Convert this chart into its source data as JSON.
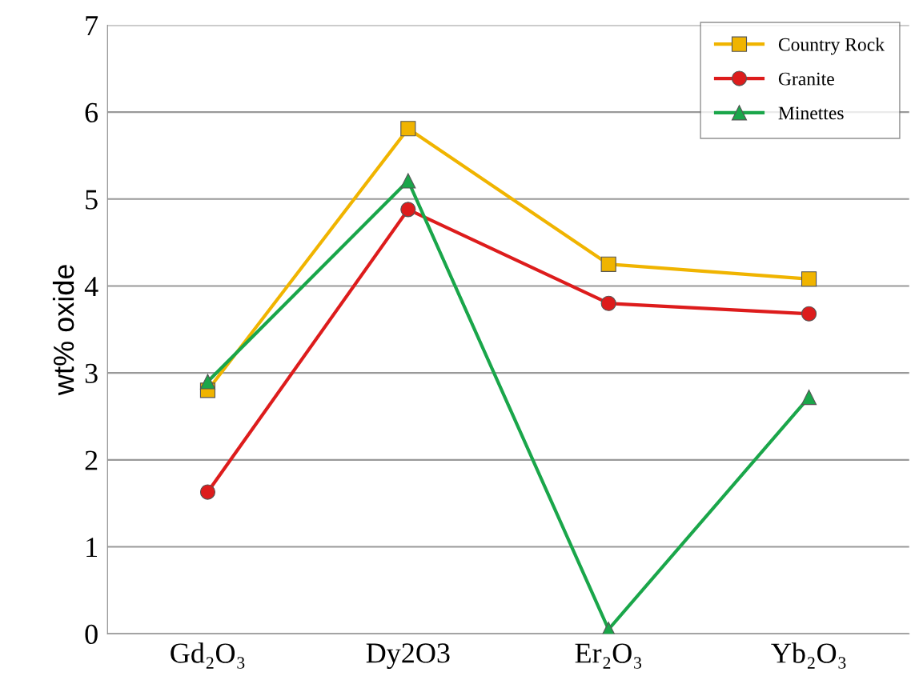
{
  "chart_data": {
    "type": "line",
    "ylabel": "wt% oxide",
    "categories": [
      "Gd₂O₃",
      "Dy2O3",
      "Er₂O₃",
      "Yb₂O₃"
    ],
    "series": [
      {
        "name": "Country Rock",
        "color": "#f0b400",
        "marker": "square",
        "values": [
          2.8,
          5.81,
          4.25,
          4.08
        ]
      },
      {
        "name": "Granite",
        "color": "#dd1c1c",
        "marker": "circle",
        "values": [
          1.63,
          4.88,
          3.8,
          3.68
        ]
      },
      {
        "name": "Minettes",
        "color": "#1aa64a",
        "marker": "triangle",
        "values": [
          2.9,
          5.21,
          0.05,
          2.72
        ]
      }
    ],
    "ylim": [
      0,
      7
    ],
    "yticks": [
      0,
      1,
      2,
      3,
      4,
      5,
      6,
      7
    ],
    "grid": "y",
    "legend": "top right",
    "line_style": "solid"
  }
}
